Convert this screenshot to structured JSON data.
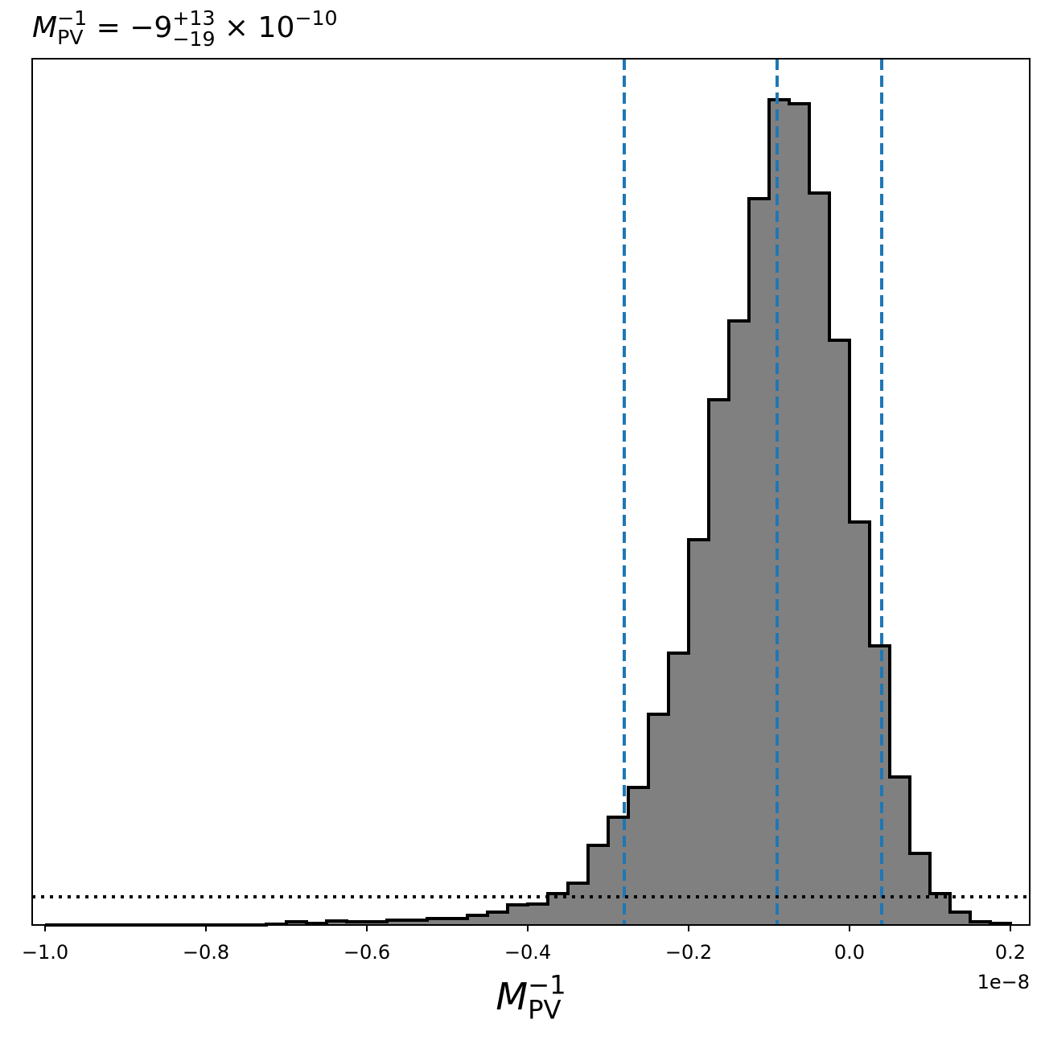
{
  "chart_data": {
    "type": "histogram",
    "title": {
      "base": "M",
      "sub": "PV",
      "sup": "−1",
      "eq": " = −9",
      "upper": "+13",
      "lower": "−19",
      "times": " × 10",
      "exp": "−10"
    },
    "x_label": {
      "base": "M",
      "sub": "PV",
      "sup": "−1"
    },
    "x_offset_label": "1e−8",
    "bins": [
      -1.0,
      -0.975,
      -0.95,
      -0.925,
      -0.9,
      -0.875,
      -0.85,
      -0.825,
      -0.8,
      -0.775,
      -0.75,
      -0.725,
      -0.7,
      -0.675,
      -0.65,
      -0.625,
      -0.6,
      -0.575,
      -0.55,
      -0.525,
      -0.5,
      -0.475,
      -0.45,
      -0.425,
      -0.4,
      -0.375,
      -0.35,
      -0.325,
      -0.3,
      -0.275,
      -0.25,
      -0.225,
      -0.2,
      -0.175,
      -0.15,
      -0.125,
      -0.1,
      -0.075,
      -0.05,
      -0.025,
      0.0,
      0.025,
      0.05,
      0.075,
      0.1,
      0.125,
      0.15,
      0.175,
      0.2
    ],
    "values": [
      0,
      0,
      0,
      0,
      0,
      0,
      0,
      0,
      0,
      0,
      0,
      0.1,
      0.4,
      0.2,
      0.5,
      0.4,
      0.4,
      0.6,
      0.6,
      0.8,
      0.8,
      1.2,
      1.6,
      2.5,
      2.6,
      3.9,
      5.2,
      9.9,
      13.4,
      17.1,
      26.2,
      33.8,
      47.9,
      65.3,
      75.1,
      90.3,
      102.6,
      102.1,
      91.0,
      72.7,
      50.1,
      34.7,
      18.4,
      8.9,
      3.9,
      1.6,
      0.4,
      0.2
    ],
    "color": "#808080",
    "edge_color": "#000000",
    "vlines": [
      -0.28,
      -0.09,
      0.04
    ],
    "vline_color": "#1f77b4",
    "hline": 3.5,
    "hline_color": "#000000",
    "xlim": [
      -1.016,
      0.224
    ],
    "ylim": [
      0,
      107.7
    ],
    "xticks": [
      {
        "value": -1.0,
        "label": "−1.0"
      },
      {
        "value": -0.8,
        "label": "−0.8"
      },
      {
        "value": -0.6,
        "label": "−0.6"
      },
      {
        "value": -0.4,
        "label": "−0.4"
      },
      {
        "value": -0.2,
        "label": "−0.2"
      },
      {
        "value": 0.0,
        "label": "0.0"
      },
      0.2
    ]
  }
}
